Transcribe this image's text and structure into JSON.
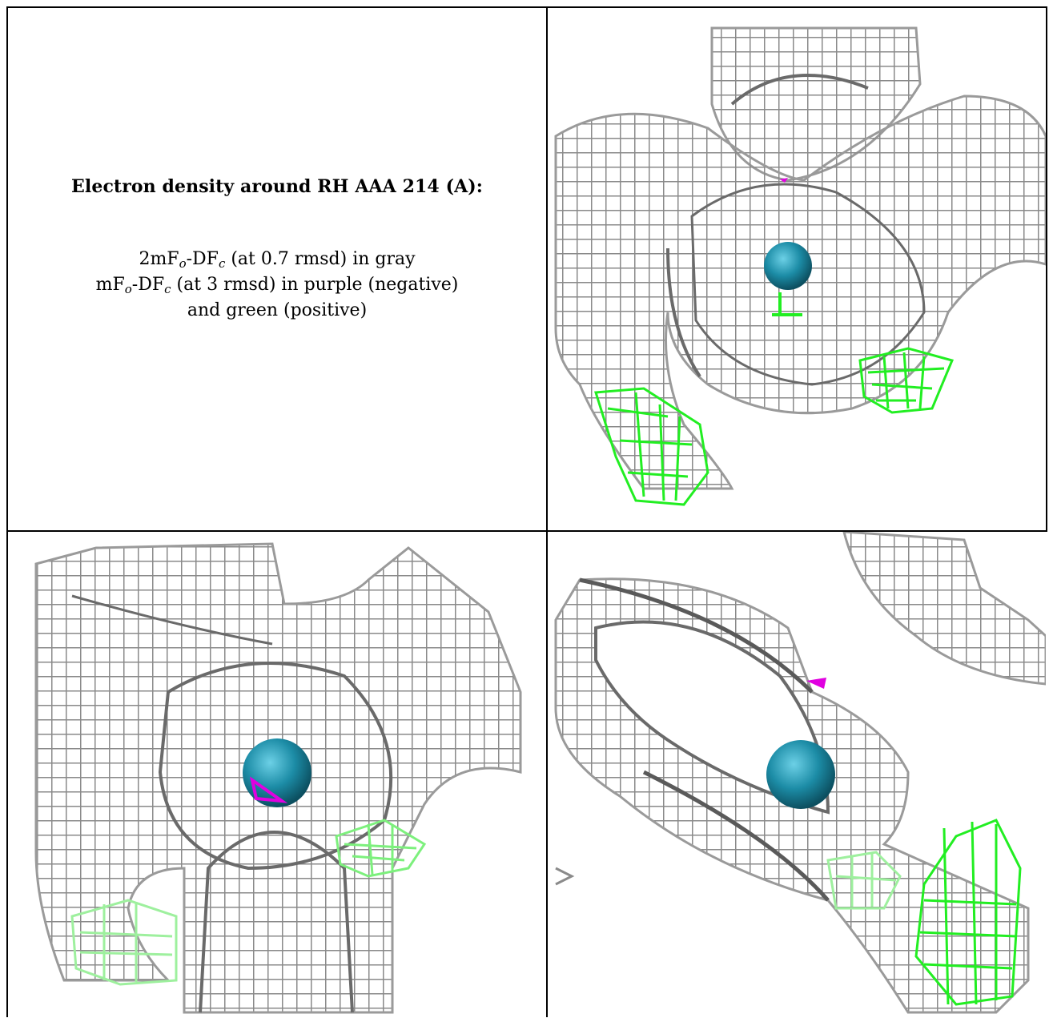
{
  "header": {
    "title": "Electron density around RH AAA 214 (A):"
  },
  "legend": {
    "line1": {
      "a": "2mF",
      "a_sub": "o",
      "b": "-DF",
      "b_sub": "c",
      "rest": " (at 0.7 rmsd) in gray"
    },
    "line2": {
      "a": "mF",
      "a_sub": "o",
      "b": "-DF",
      "b_sub": "c",
      "rest": " (at 3 rmsd) in purple (negative)"
    },
    "line3": "and green (positive)"
  },
  "colors": {
    "mesh_gray": "#8a8a8a",
    "mesh_dark": "#5a5a5a",
    "positive_green": "#22ee22",
    "negative_purple": "#e000e0",
    "atom_teal": "#1c8ca6"
  },
  "panels": [
    {
      "id": "view-1",
      "atom": "RH",
      "positive_density": true,
      "negative_density": true
    },
    {
      "id": "view-2",
      "atom": "RH",
      "positive_density": true,
      "negative_density": true
    },
    {
      "id": "view-3",
      "atom": "RH",
      "positive_density": true,
      "negative_density": true
    }
  ]
}
